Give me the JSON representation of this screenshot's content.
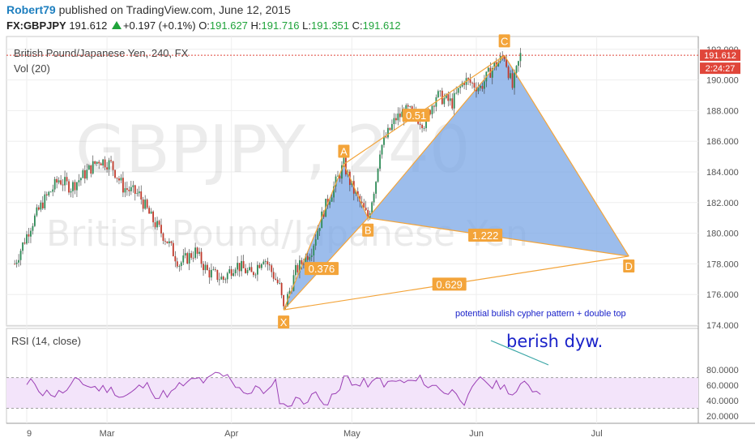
{
  "header": {
    "user": "Robert79",
    "published": " published on TradingView.com, June 12, 2015",
    "symbol": "FX:GBPJPY",
    "last": "191.612",
    "change": "+0.197 (+0.1%)",
    "open_label": "O:",
    "open": "191.627",
    "high_label": "H:",
    "high": "191.716",
    "low_label": "L:",
    "low": "191.351",
    "close_label": "C:",
    "close": "191.612"
  },
  "chart_data": {
    "type": "candlestick",
    "title": "British Pound/Japanese Yen, 240, FX",
    "volume_label": "Vol (20)",
    "watermark": "GBPJPY, 240",
    "watermark_sub": "British Pound/Japanese Yen",
    "price_axis": {
      "ticks": [
        "192.000",
        "190.000",
        "188.000",
        "186.000",
        "184.000",
        "182.000",
        "180.000",
        "178.000",
        "176.000",
        "174.000"
      ],
      "range": [
        173.8,
        193.0
      ]
    },
    "last_price_label": "191.612",
    "countdown_label": "2:24:27",
    "time_axis": {
      "labels": [
        "9",
        "Mar",
        "Apr",
        "May",
        "Jun",
        "Jul"
      ]
    },
    "price_path": [
      [
        "Feb 06",
        178.0
      ],
      [
        "Feb 10",
        180.5
      ],
      [
        "Feb 13",
        182.0
      ],
      [
        "Feb 17",
        183.5
      ],
      [
        "Feb 20",
        183.0
      ],
      [
        "Feb 24",
        184.0
      ],
      [
        "Feb 27",
        184.8
      ],
      [
        "Mar 02",
        184.5
      ],
      [
        "Mar 05",
        183.0
      ],
      [
        "Mar 09",
        182.5
      ],
      [
        "Mar 12",
        181.0
      ],
      [
        "Mar 16",
        179.5
      ],
      [
        "Mar 19",
        178.0
      ],
      [
        "Mar 23",
        178.8
      ],
      [
        "Mar 26",
        177.5
      ],
      [
        "Mar 30",
        177.0
      ],
      [
        "Apr 02",
        178.0
      ],
      [
        "Apr 06",
        177.3
      ],
      [
        "Apr 09",
        178.5
      ],
      [
        "Apr 13",
        176.5
      ],
      [
        "Apr 14",
        175.0
      ],
      [
        "Apr 17",
        177.5
      ],
      [
        "Apr 21",
        179.0
      ],
      [
        "Apr 24",
        181.5
      ],
      [
        "Apr 29",
        184.5
      ],
      [
        "May 01",
        183.0
      ],
      [
        "May 05",
        181.0
      ],
      [
        "May 07",
        183.5
      ],
      [
        "May 08",
        185.5
      ],
      [
        "May 12",
        187.5
      ],
      [
        "May 15",
        188.0
      ],
      [
        "May 19",
        187.2
      ],
      [
        "May 22",
        189.0
      ],
      [
        "May 26",
        188.5
      ],
      [
        "May 29",
        190.0
      ],
      [
        "Jun 02",
        189.5
      ],
      [
        "Jun 05",
        190.8
      ],
      [
        "Jun 08",
        191.6
      ],
      [
        "Jun 10",
        189.5
      ],
      [
        "Jun 12",
        191.6
      ]
    ],
    "pattern": {
      "name": "potential bulish cypher pattern + double top",
      "points": {
        "X": {
          "label": "X",
          "date": "Apr 14",
          "price": 175.0
        },
        "A": {
          "label": "A",
          "date": "Apr 29",
          "price": 184.5
        },
        "B": {
          "label": "B",
          "date": "May 05",
          "price": 181.0
        },
        "C": {
          "label": "C",
          "date": "Jun 08",
          "price": 191.6
        },
        "D": {
          "label": "D",
          "date": "Jul 09",
          "price": 178.5
        }
      },
      "ratios": {
        "xb": "0.376",
        "ac": "0.51",
        "bd": "1.222",
        "xd": "0.629"
      }
    },
    "rsi": {
      "label": "RSI (14, close)",
      "ticks": [
        "80.0000",
        "60.0000",
        "40.0000",
        "20.0000"
      ],
      "range": [
        15,
        83
      ],
      "band": [
        30,
        70
      ],
      "annotation": "berish dyw."
    }
  },
  "colors": {
    "pattern_fill": "#7ba7e6",
    "pattern_line": "#f3a43a",
    "rsi_line": "#9b3fb5",
    "rsi_band": "#f3e4fa",
    "up_candle": "#2e8b57",
    "down_candle": "#c0392b",
    "price_tag": "#e0463a",
    "annotation_text": "#1a22c9"
  }
}
